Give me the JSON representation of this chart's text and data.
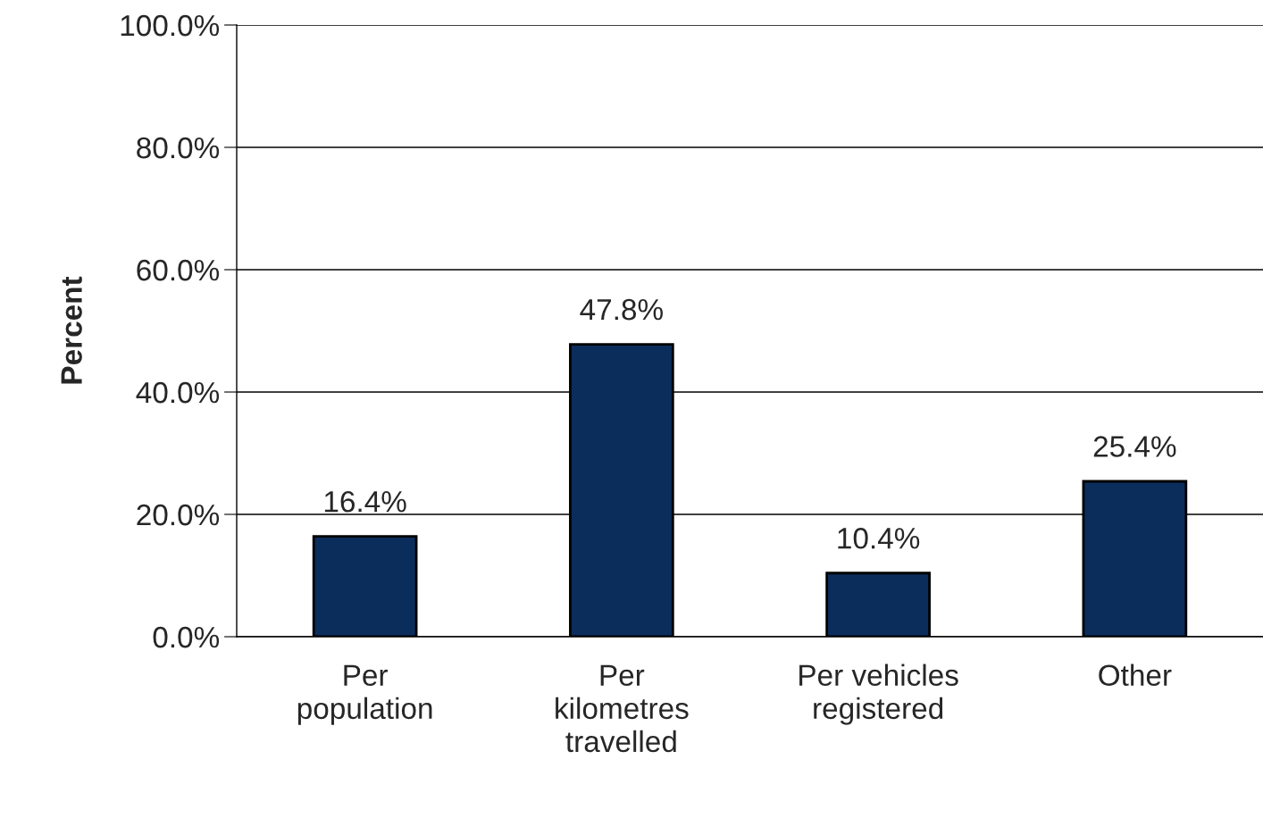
{
  "chart_data": {
    "type": "bar",
    "ylabel": "Percent",
    "categories": [
      "Per\npopulation",
      "Per\nkilometres\ntravelled",
      "Per vehicles\nregistered",
      "Other"
    ],
    "values": [
      16.4,
      47.8,
      10.4,
      25.4
    ],
    "value_labels": [
      "16.4%",
      "47.8%",
      "10.4%",
      "25.4%"
    ],
    "color": "#0b2d5c",
    "ylim": [
      0,
      100
    ],
    "yticks": [
      {
        "value": 0,
        "label": "0.0%"
      },
      {
        "value": 20,
        "label": "20.0%"
      },
      {
        "value": 40,
        "label": "40.0%"
      },
      {
        "value": 60,
        "label": "60.0%"
      },
      {
        "value": 80,
        "label": "80.0%"
      },
      {
        "value": 100,
        "label": "100.0%"
      }
    ],
    "grid": "y",
    "legend": false
  }
}
